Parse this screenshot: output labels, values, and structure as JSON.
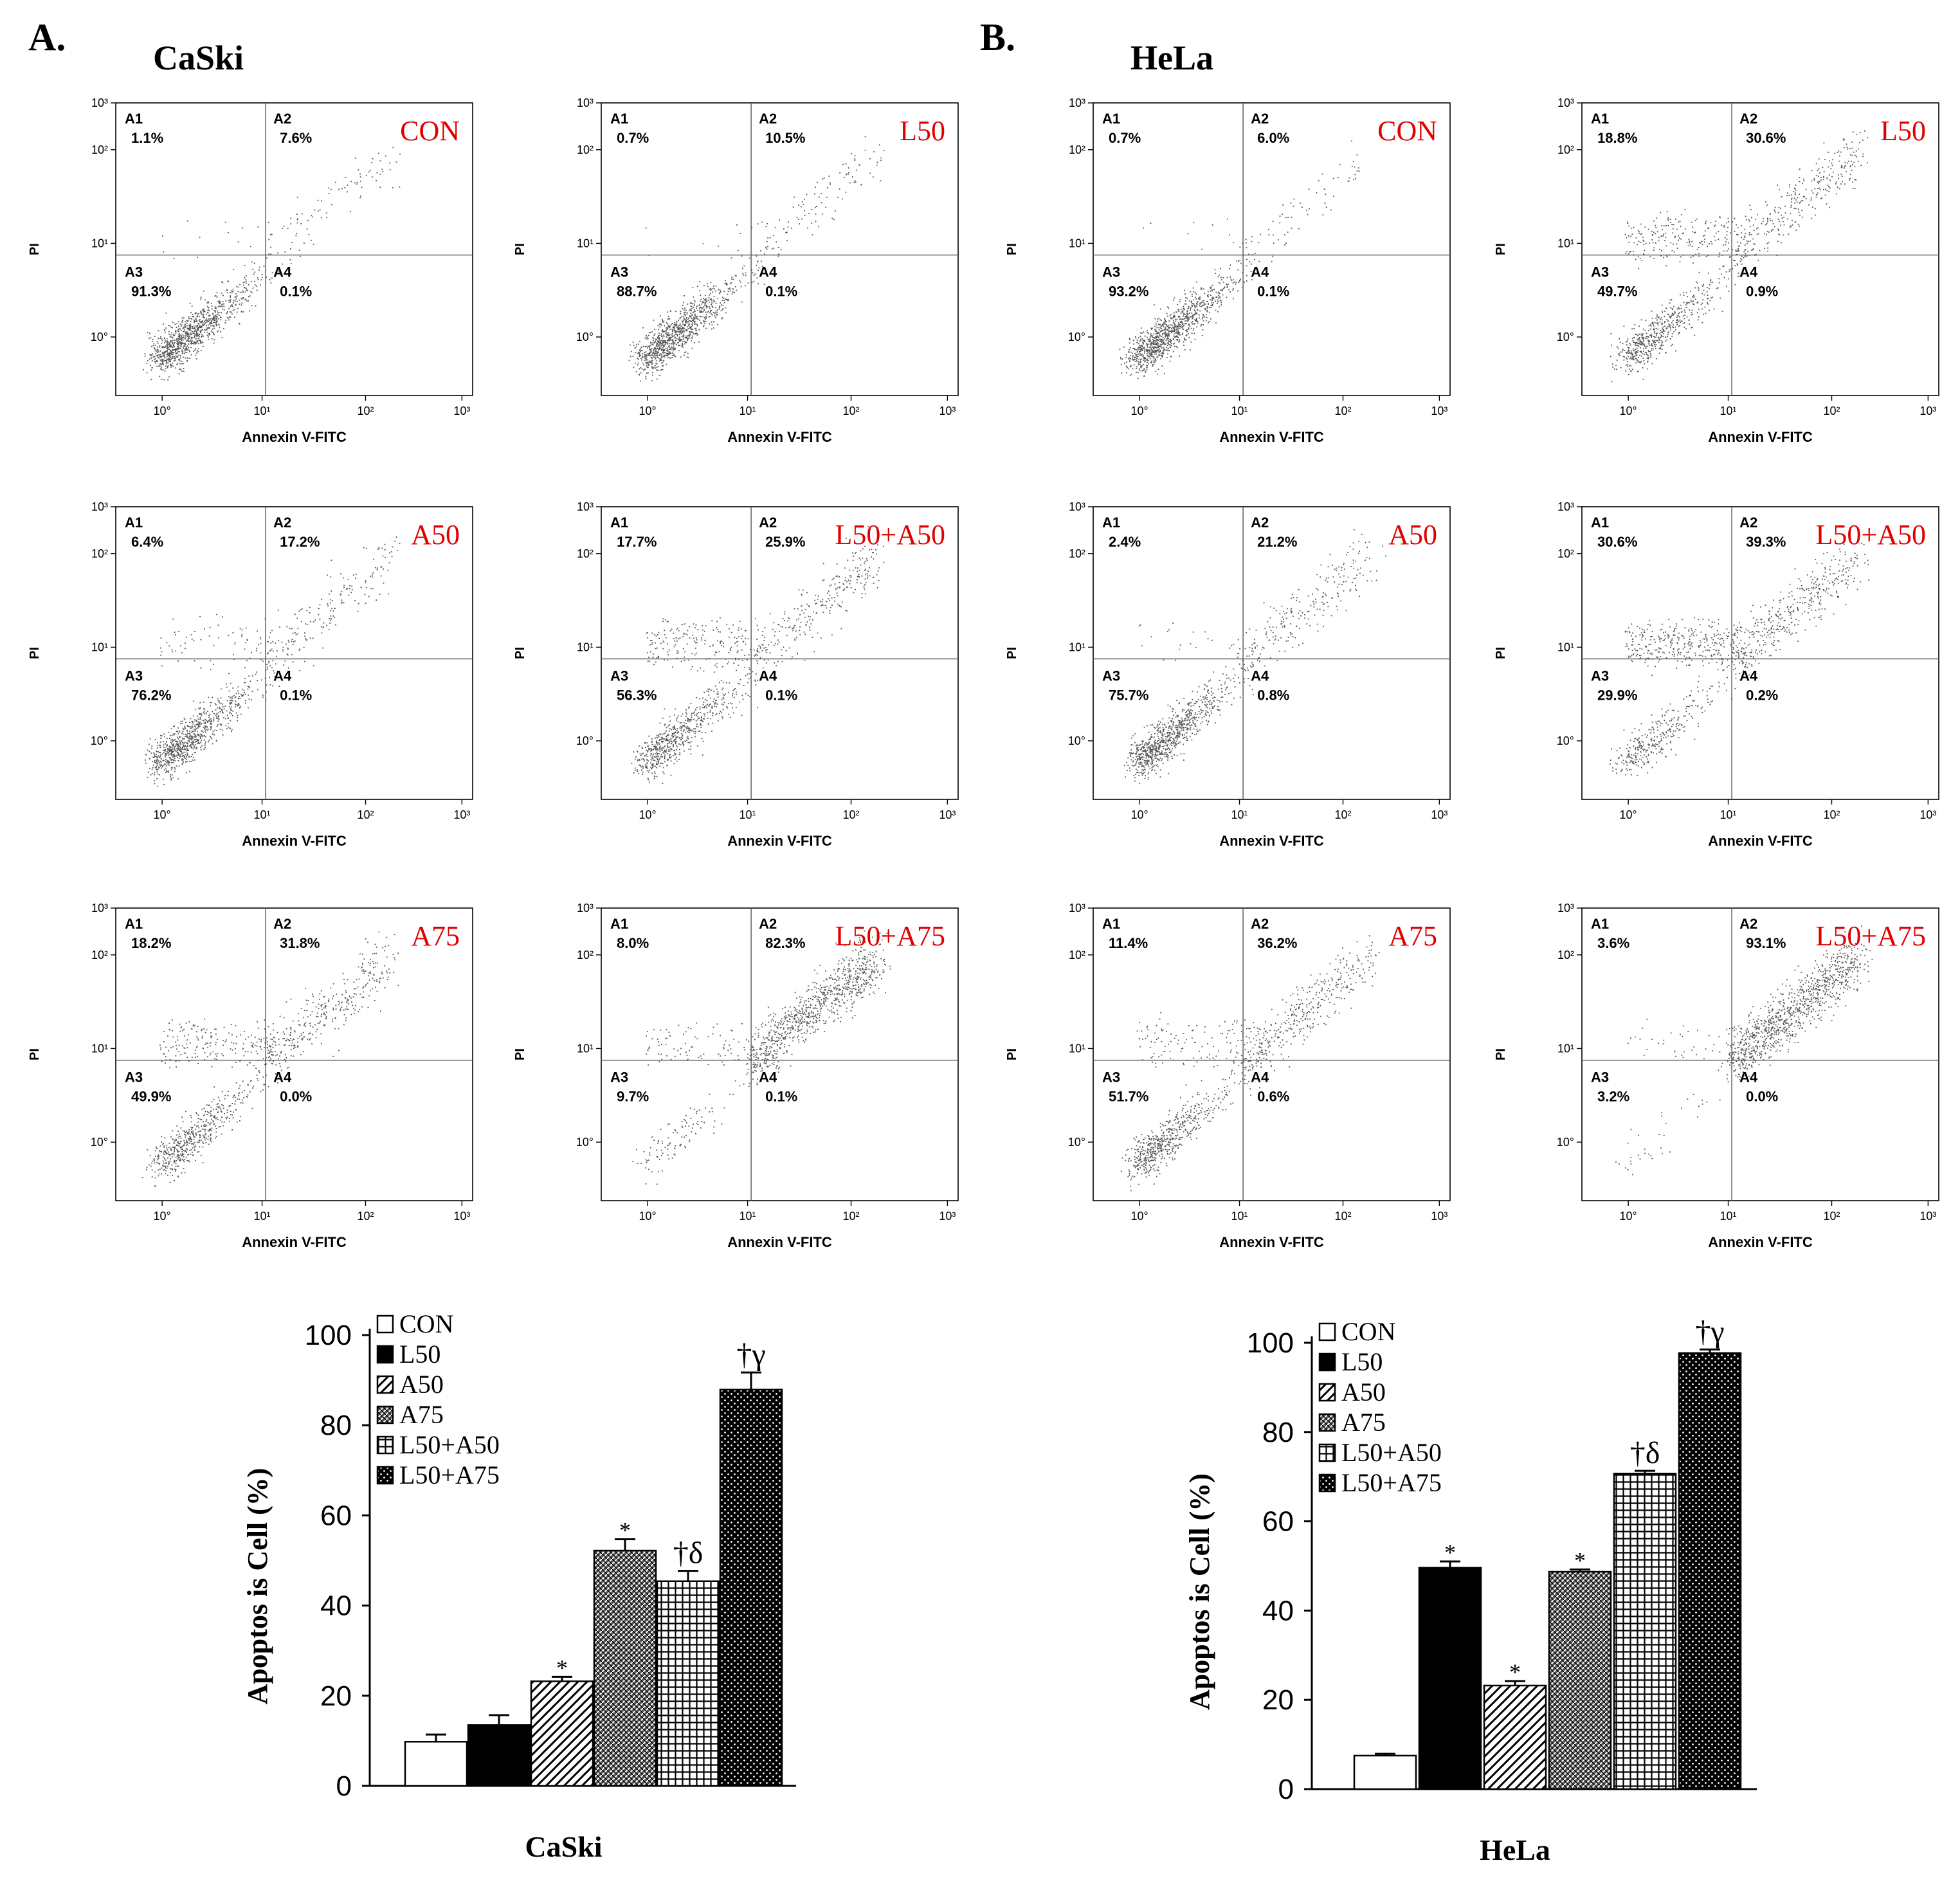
{
  "panels": {
    "A": {
      "letter": "A.",
      "cell_line": "CaSki"
    },
    "B": {
      "letter": "B.",
      "cell_line": "HeLa"
    }
  },
  "flow_axes": {
    "xlabel": "Annexin V-FITC",
    "ylabel": "PI",
    "x_ticks": [
      "10°",
      "10¹",
      "10²",
      "10³"
    ],
    "y_ticks": [
      "10°",
      "10¹",
      "10²",
      "10³"
    ],
    "quadrants": [
      "A1",
      "A2",
      "A3",
      "A4"
    ]
  },
  "colors": {
    "treatment_label": "#e00000",
    "ink": "#000000",
    "dots": "#555555"
  },
  "chart_data": [
    {
      "type": "scatter",
      "panel": "A",
      "cell_line": "CaSki",
      "treatment": "CON",
      "quadrant_percent": {
        "A1": "1.1%",
        "A2": "7.6%",
        "A3": "91.3%",
        "A4": "0.1%"
      }
    },
    {
      "type": "scatter",
      "panel": "A",
      "cell_line": "CaSki",
      "treatment": "L50",
      "quadrant_percent": {
        "A1": "0.7%",
        "A2": "10.5%",
        "A3": "88.7%",
        "A4": "0.1%"
      }
    },
    {
      "type": "scatter",
      "panel": "A",
      "cell_line": "CaSki",
      "treatment": "A50",
      "quadrant_percent": {
        "A1": "6.4%",
        "A2": "17.2%",
        "A3": "76.2%",
        "A4": "0.1%"
      }
    },
    {
      "type": "scatter",
      "panel": "A",
      "cell_line": "CaSki",
      "treatment": "L50+A50",
      "quadrant_percent": {
        "A1": "17.7%",
        "A2": "25.9%",
        "A3": "56.3%",
        "A4": "0.1%"
      }
    },
    {
      "type": "scatter",
      "panel": "A",
      "cell_line": "CaSki",
      "treatment": "A75",
      "quadrant_percent": {
        "A1": "18.2%",
        "A2": "31.8%",
        "A3": "49.9%",
        "A4": "0.0%"
      }
    },
    {
      "type": "scatter",
      "panel": "A",
      "cell_line": "CaSki",
      "treatment": "L50+A75",
      "quadrant_percent": {
        "A1": "8.0%",
        "A2": "82.3%",
        "A3": "9.7%",
        "A4": "0.1%"
      }
    },
    {
      "type": "scatter",
      "panel": "B",
      "cell_line": "HeLa",
      "treatment": "CON",
      "quadrant_percent": {
        "A1": "0.7%",
        "A2": "6.0%",
        "A3": "93.2%",
        "A4": "0.1%"
      }
    },
    {
      "type": "scatter",
      "panel": "B",
      "cell_line": "HeLa",
      "treatment": "L50",
      "quadrant_percent": {
        "A1": "18.8%",
        "A2": "30.6%",
        "A3": "49.7%",
        "A4": "0.9%"
      }
    },
    {
      "type": "scatter",
      "panel": "B",
      "cell_line": "HeLa",
      "treatment": "A50",
      "quadrant_percent": {
        "A1": "2.4%",
        "A2": "21.2%",
        "A3": "75.7%",
        "A4": "0.8%"
      }
    },
    {
      "type": "scatter",
      "panel": "B",
      "cell_line": "HeLa",
      "treatment": "L50+A50",
      "quadrant_percent": {
        "A1": "30.6%",
        "A2": "39.3%",
        "A3": "29.9%",
        "A4": "0.2%"
      }
    },
    {
      "type": "scatter",
      "panel": "B",
      "cell_line": "HeLa",
      "treatment": "A75",
      "quadrant_percent": {
        "A1": "11.4%",
        "A2": "36.2%",
        "A3": "51.7%",
        "A4": "0.6%"
      }
    },
    {
      "type": "scatter",
      "panel": "B",
      "cell_line": "HeLa",
      "treatment": "L50+A75",
      "quadrant_percent": {
        "A1": "3.6%",
        "A2": "93.1%",
        "A3": "3.2%",
        "A4": "0.0%"
      }
    },
    {
      "type": "bar",
      "panel": "A",
      "categories": [
        "CON",
        "L50",
        "A50",
        "A75",
        "L50+A50",
        "L50+A75"
      ],
      "values": [
        9.8,
        13.5,
        23.2,
        52.2,
        45.4,
        87.9
      ],
      "errors": [
        1.6,
        2.2,
        1.0,
        2.5,
        2.3,
        3.8
      ],
      "significance": [
        "",
        "",
        "*",
        "*",
        "†δ",
        "†γ"
      ],
      "xlabel": "CaSki",
      "ylabel": "Apoptos is  Cell (%)",
      "ylim": [
        0,
        100
      ],
      "yticks": [
        "0",
        "20",
        "40",
        "60",
        "80",
        "100"
      ],
      "legend": [
        "CON",
        "L50",
        "A50",
        "A75",
        "L50+A50",
        "L50+A75"
      ],
      "legend_position": "top-left"
    },
    {
      "type": "bar",
      "panel": "B",
      "categories": [
        "CON",
        "L50",
        "A50",
        "A75",
        "L50+A50",
        "L50+A75"
      ],
      "values": [
        7.5,
        49.6,
        23.2,
        48.7,
        70.7,
        97.7
      ],
      "errors": [
        0.4,
        1.4,
        1.0,
        0.5,
        0.6,
        0.8
      ],
      "significance": [
        "",
        "*",
        "*",
        "*",
        "†δ",
        "†γ"
      ],
      "xlabel": "HeLa",
      "ylabel": "Apoptos is  Cell (%)",
      "ylim": [
        0,
        100
      ],
      "yticks": [
        "0",
        "20",
        "40",
        "60",
        "80",
        "100"
      ],
      "legend": [
        "CON",
        "L50",
        "A50",
        "A75",
        "L50+A50",
        "L50+A75"
      ],
      "legend_position": "top-left"
    }
  ]
}
